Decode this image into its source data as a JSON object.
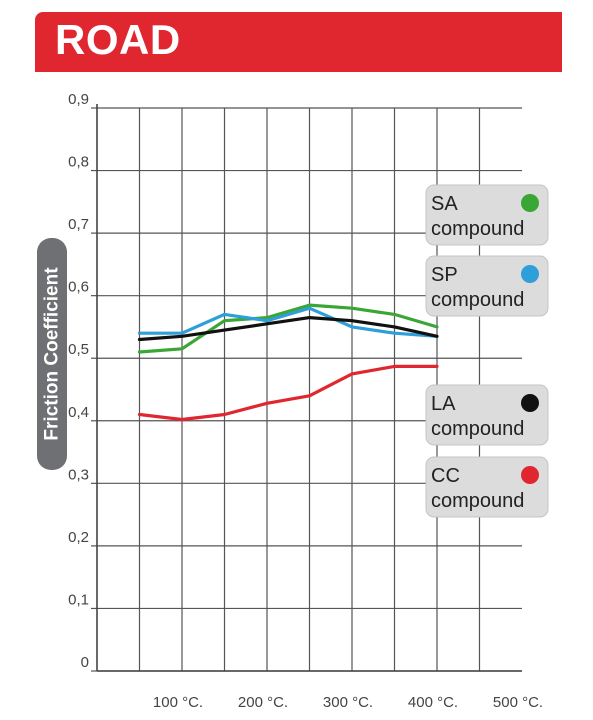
{
  "header": {
    "title": "ROAD"
  },
  "chart_data": {
    "type": "line",
    "ylabel": "Friction Coefficient",
    "xlabel": "",
    "y_ticks": [
      "0",
      "0,1",
      "0,2",
      "0,3",
      "0,4",
      "0,5",
      "0,6",
      "0,7",
      "0,8",
      "0,9"
    ],
    "x_ticks": [
      "100 °C.",
      "200 °C.",
      "300 °C.",
      "400 °C.",
      "500 °C."
    ],
    "x_tick_values": [
      100,
      200,
      300,
      400,
      500
    ],
    "ylim": [
      0,
      0.9
    ],
    "xlim": [
      0,
      500
    ],
    "grid": true,
    "series": [
      {
        "name": "SA compound",
        "name_line1": "SA",
        "name_line2": "compound",
        "color": "#3aa635",
        "x": [
          50,
          100,
          150,
          200,
          250,
          300,
          350,
          400
        ],
        "y": [
          0.51,
          0.515,
          0.56,
          0.565,
          0.585,
          0.58,
          0.57,
          0.55
        ]
      },
      {
        "name": "SP compound",
        "name_line1": "SP",
        "name_line2": "compound",
        "color": "#2e9fd8",
        "x": [
          50,
          100,
          150,
          200,
          250,
          300,
          350,
          400
        ],
        "y": [
          0.54,
          0.54,
          0.57,
          0.56,
          0.58,
          0.55,
          0.54,
          0.535
        ]
      },
      {
        "name": "LA compound",
        "name_line1": "LA",
        "name_line2": "compound",
        "color": "#111111",
        "x": [
          50,
          100,
          150,
          200,
          250,
          300,
          350,
          400
        ],
        "y": [
          0.53,
          0.535,
          0.545,
          0.555,
          0.565,
          0.56,
          0.55,
          0.535
        ]
      },
      {
        "name": "CC compound",
        "name_line1": "CC",
        "name_line2": "compound",
        "color": "#e0272f",
        "x": [
          50,
          100,
          150,
          200,
          250,
          300,
          350,
          400
        ],
        "y": [
          0.41,
          0.402,
          0.41,
          0.428,
          0.44,
          0.475,
          0.487,
          0.487
        ]
      }
    ]
  }
}
